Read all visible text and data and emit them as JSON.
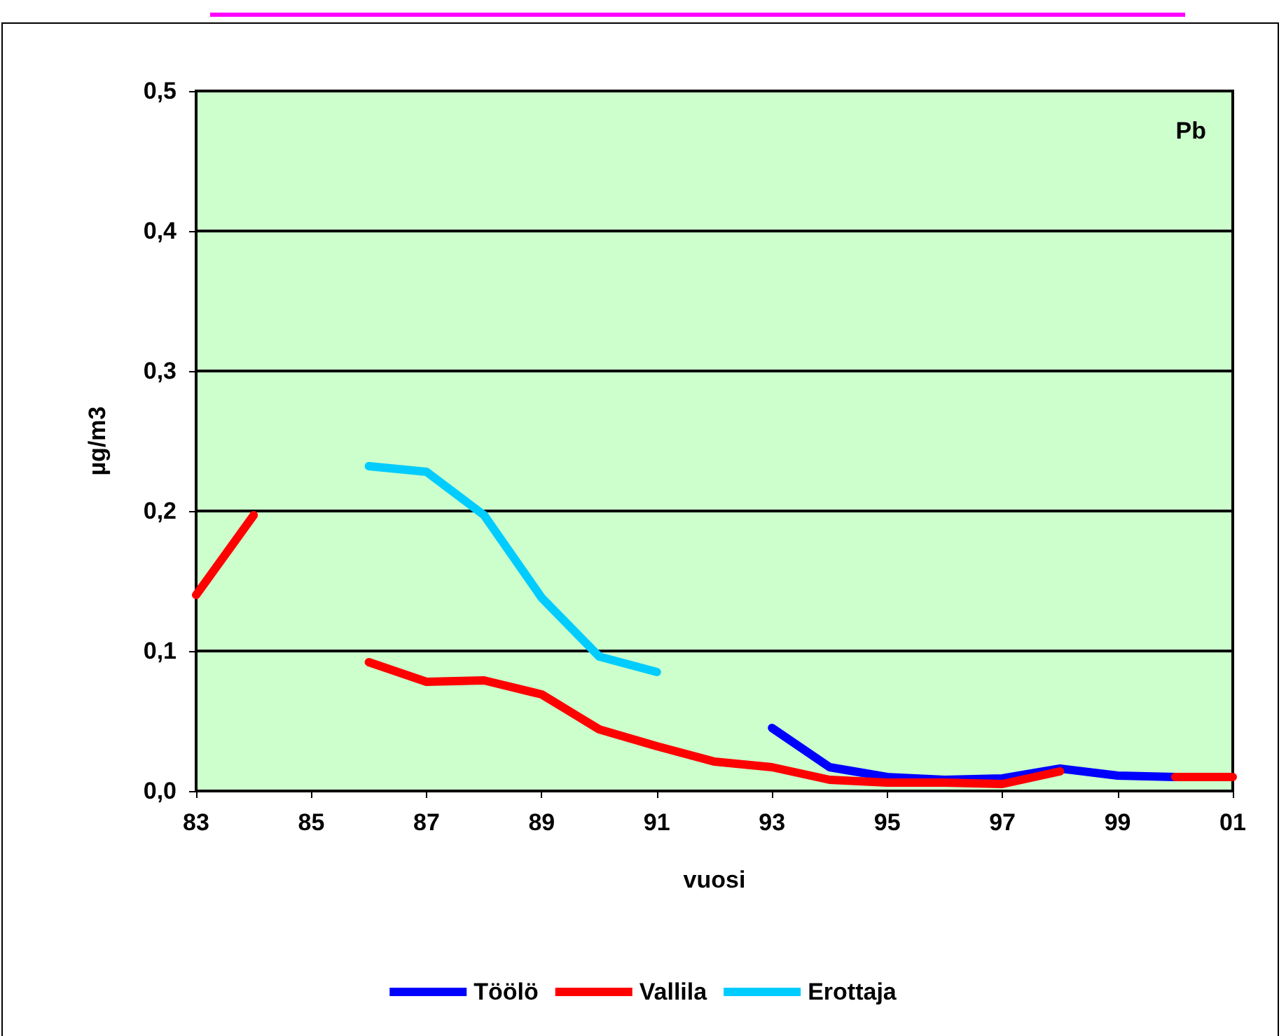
{
  "chart_data": {
    "type": "line",
    "annotations": [
      "Pb"
    ],
    "xlabel": "vuosi",
    "ylabel": "µg/m3",
    "x": [
      1983,
      1984,
      1985,
      1986,
      1987,
      1988,
      1989,
      1990,
      1991,
      1992,
      1993,
      1994,
      1995,
      1996,
      1997,
      1998,
      1999,
      2000,
      2001
    ],
    "series": [
      {
        "name": "Töölö",
        "color": "#0000ff",
        "values": [
          null,
          null,
          null,
          null,
          null,
          null,
          null,
          null,
          null,
          null,
          0.045,
          0.017,
          0.01,
          0.008,
          0.009,
          0.016,
          0.011,
          0.01,
          null
        ]
      },
      {
        "name": "Vallila",
        "color": "#ff0000",
        "values": [
          0.14,
          0.197,
          null,
          0.092,
          0.078,
          0.079,
          0.069,
          0.044,
          0.032,
          0.021,
          0.017,
          0.008,
          0.006,
          0.006,
          0.005,
          0.014,
          null,
          0.01,
          0.01
        ]
      },
      {
        "name": "Erottaja",
        "color": "#00ccff",
        "values": [
          null,
          null,
          null,
          0.232,
          0.228,
          0.197,
          0.138,
          0.096,
          0.085,
          null,
          null,
          null,
          null,
          null,
          null,
          null,
          null,
          null,
          null
        ]
      }
    ],
    "xlim": [
      1983,
      2001
    ],
    "xticks": [
      {
        "value": 1983,
        "label": "83"
      },
      {
        "value": 1985,
        "label": "85"
      },
      {
        "value": 1987,
        "label": "87"
      },
      {
        "value": 1989,
        "label": "89"
      },
      {
        "value": 1991,
        "label": "91"
      },
      {
        "value": 1993,
        "label": "93"
      },
      {
        "value": 1995,
        "label": "95"
      },
      {
        "value": 1997,
        "label": "97"
      },
      {
        "value": 1999,
        "label": "99"
      },
      {
        "value": 2001,
        "label": "01"
      }
    ],
    "ylim": [
      0,
      0.5
    ],
    "yticks": [
      {
        "value": 0,
        "label": "0,0"
      },
      {
        "value": 0.1,
        "label": "0,1"
      },
      {
        "value": 0.2,
        "label": "0,2"
      },
      {
        "value": 0.3,
        "label": "0,3"
      },
      {
        "value": 0.4,
        "label": "0,4"
      },
      {
        "value": 0.5,
        "label": "0,5"
      }
    ],
    "grid": "y",
    "legend": "bottom",
    "marker": "none",
    "line_style": "solid"
  }
}
